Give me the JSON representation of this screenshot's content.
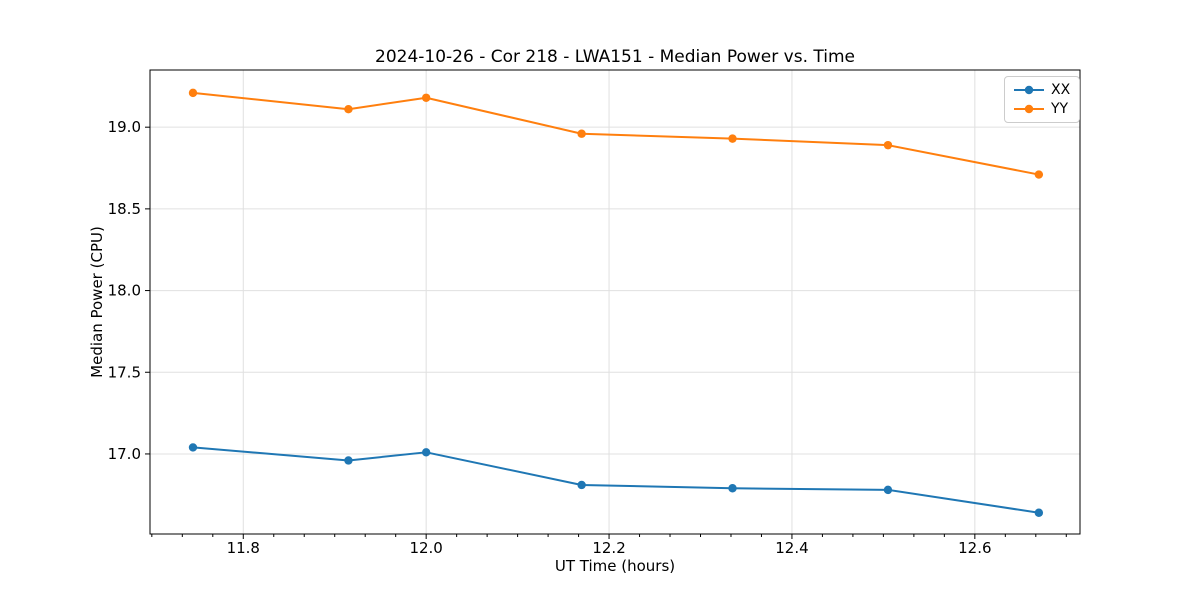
{
  "chart_data": {
    "type": "line",
    "title": "2024-10-26 - Cor 218 - LWA151 - Median Power vs. Time",
    "xlabel": "UT Time (hours)",
    "ylabel": "Median Power (CPU)",
    "xlim": [
      11.698,
      12.715
    ],
    "ylim": [
      16.51,
      19.35
    ],
    "xticks": [
      11.8,
      12.0,
      12.2,
      12.4,
      12.6
    ],
    "yticks": [
      17.0,
      17.5,
      18.0,
      18.5,
      19.0
    ],
    "x_minor_divisions": 6,
    "grid": true,
    "legend_position": "upper right",
    "x": [
      11.745,
      11.915,
      12.0,
      12.17,
      12.335,
      12.505,
      12.67
    ],
    "series": [
      {
        "name": "XX",
        "color": "#1f77b4",
        "values": [
          17.04,
          16.96,
          17.01,
          16.81,
          16.79,
          16.78,
          16.64
        ]
      },
      {
        "name": "YY",
        "color": "#ff7f0e",
        "values": [
          19.21,
          19.11,
          19.18,
          18.96,
          18.93,
          18.89,
          18.71
        ]
      }
    ]
  },
  "colors": {
    "grid": "#e0e0e0",
    "spine": "#000000",
    "tick_label": "#000000",
    "background": "#ffffff"
  }
}
